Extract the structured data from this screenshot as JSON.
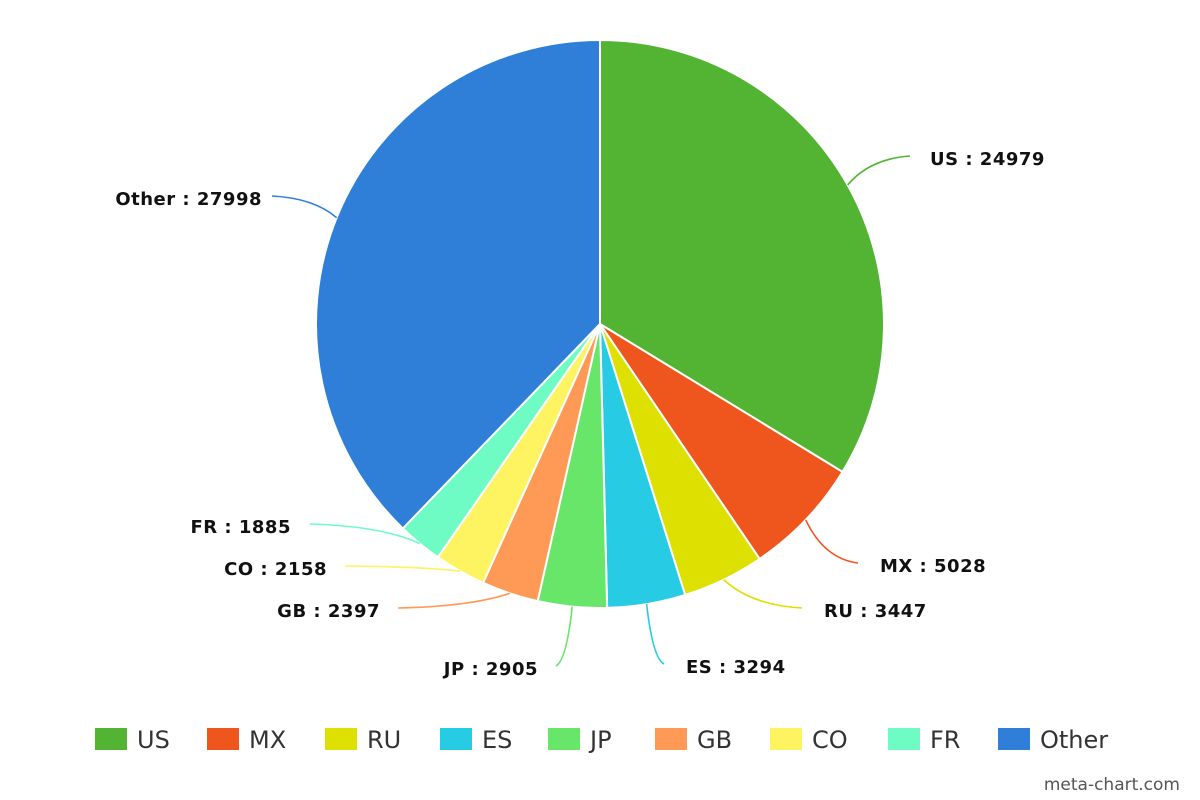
{
  "chart_data": {
    "type": "pie",
    "slices": [
      {
        "label": "US",
        "value": 24979,
        "color": "#52b432"
      },
      {
        "label": "MX",
        "value": 5028,
        "color": "#ee561e"
      },
      {
        "label": "RU",
        "value": 3447,
        "color": "#dde000"
      },
      {
        "label": "ES",
        "value": 3294,
        "color": "#27cce4"
      },
      {
        "label": "JP",
        "value": 2905,
        "color": "#67e66a"
      },
      {
        "label": "GB",
        "value": 2397,
        "color": "#ff9956"
      },
      {
        "label": "CO",
        "value": 2158,
        "color": "#fef360"
      },
      {
        "label": "FR",
        "value": 1885,
        "color": "#6efcc4"
      },
      {
        "label": "Other",
        "value": 27998,
        "color": "#2f7ed8"
      }
    ],
    "label_format": "{label} : {value}",
    "legend_position": "bottom",
    "start_angle": "12 o'clock",
    "direction": "clockwise"
  },
  "watermark": "meta-chart.com"
}
